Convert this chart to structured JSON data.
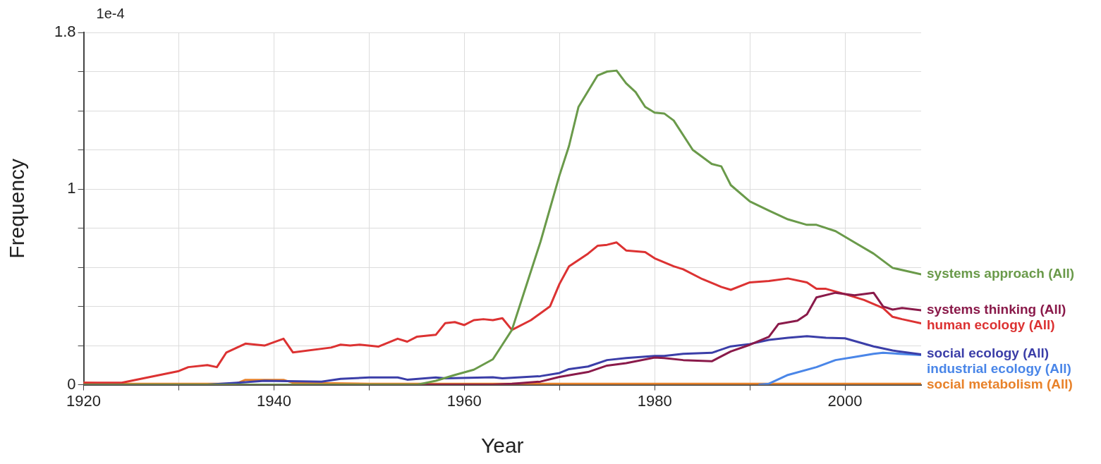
{
  "chart_data": {
    "type": "line",
    "xlabel": "Year",
    "ylabel": "Frequency",
    "annotations": [
      "1e-4"
    ],
    "xlim": [
      1920,
      2008
    ],
    "xticks": [
      1920,
      {
        "value": 1930,
        "label": null
      },
      1940,
      {
        "value": 1950,
        "label": null
      },
      1960,
      {
        "value": 1970,
        "label": null
      },
      1980,
      {
        "value": 1990,
        "label": null
      },
      2000
    ],
    "ylim": [
      0,
      1.8
    ],
    "yticks": [
      0,
      {
        "value": 0.2,
        "label": null
      },
      {
        "value": 0.4,
        "label": null
      },
      {
        "value": 0.6,
        "label": null
      },
      {
        "value": 0.8,
        "label": null
      },
      1,
      {
        "value": 1.2,
        "label": null
      },
      {
        "value": 1.4,
        "label": null
      },
      {
        "value": 1.6,
        "label": null
      },
      1.8
    ],
    "grid": true,
    "legend": false,
    "marker": "none",
    "line_style": "solid",
    "series": [
      {
        "name": "systems approach (All)",
        "color": "#6a9a4a",
        "x": [
          1920,
          1955,
          1957,
          1959,
          1961,
          1963,
          1964,
          1965,
          1966,
          1968,
          1970,
          1971,
          1972,
          1974,
          1975,
          1976,
          1977,
          1978,
          1979,
          1980,
          1981,
          1982,
          1984,
          1986,
          1987,
          1988,
          1990,
          1992,
          1994,
          1996,
          1997,
          1999,
          2001,
          2003,
          2005,
          2008
        ],
        "values": [
          0,
          0,
          0.02,
          0.05,
          0.077,
          0.13,
          0.205,
          0.28,
          0.43,
          0.73,
          1.07,
          1.22,
          1.42,
          1.58,
          1.6,
          1.605,
          1.54,
          1.495,
          1.42,
          1.39,
          1.386,
          1.35,
          1.2,
          1.128,
          1.116,
          1.02,
          0.937,
          0.89,
          0.845,
          0.817,
          0.817,
          0.785,
          0.727,
          0.67,
          0.597,
          0.564
        ]
      },
      {
        "name": "systems thinking (All)",
        "color": "#8a1a4a",
        "x": [
          1920,
          1963,
          1965,
          1968,
          1970,
          1973,
          1975,
          1977,
          1980,
          1981,
          1983,
          1986,
          1988,
          1990,
          1992,
          1993,
          1995,
          1996,
          1997,
          1999,
          2001,
          2003,
          2004,
          2005,
          2006,
          2008
        ],
        "values": [
          0,
          0,
          0.005,
          0.016,
          0.04,
          0.065,
          0.098,
          0.11,
          0.139,
          0.136,
          0.126,
          0.12,
          0.17,
          0.204,
          0.245,
          0.31,
          0.327,
          0.36,
          0.446,
          0.47,
          0.457,
          0.47,
          0.4,
          0.384,
          0.392,
          0.38
        ]
      },
      {
        "name": "human ecology (All)",
        "color": "#dc3232",
        "x": [
          1920,
          1924,
          1930,
          1931,
          1933,
          1934,
          1935,
          1937,
          1939,
          1941,
          1942,
          1946,
          1947,
          1948,
          1949,
          1951,
          1953,
          1954,
          1955,
          1957,
          1958,
          1959,
          1960,
          1961,
          1962,
          1963,
          1964,
          1965,
          1967,
          1969,
          1970,
          1971,
          1973,
          1974,
          1975,
          1976,
          1977,
          1979,
          1980,
          1982,
          1983,
          1985,
          1987,
          1988,
          1990,
          1992,
          1994,
          1996,
          1997,
          1998,
          2000,
          2002,
          2004,
          2005,
          2006,
          2008
        ],
        "values": [
          0.01,
          0.01,
          0.07,
          0.09,
          0.1,
          0.09,
          0.165,
          0.21,
          0.2,
          0.235,
          0.165,
          0.19,
          0.205,
          0.2,
          0.205,
          0.195,
          0.235,
          0.22,
          0.245,
          0.255,
          0.315,
          0.32,
          0.305,
          0.33,
          0.335,
          0.33,
          0.34,
          0.28,
          0.33,
          0.4,
          0.515,
          0.605,
          0.67,
          0.71,
          0.715,
          0.727,
          0.686,
          0.678,
          0.646,
          0.605,
          0.59,
          0.54,
          0.5,
          0.485,
          0.523,
          0.53,
          0.543,
          0.523,
          0.49,
          0.49,
          0.463,
          0.433,
          0.392,
          0.347,
          0.335,
          0.314
        ]
      },
      {
        "name": "social ecology (All)",
        "color": "#3b3ea8",
        "x": [
          1920,
          1933,
          1937,
          1939,
          1945,
          1947,
          1950,
          1953,
          1954,
          1957,
          1958,
          1963,
          1964,
          1968,
          1970,
          1971,
          1973,
          1975,
          1977,
          1980,
          1981,
          1983,
          1986,
          1988,
          1990,
          1992,
          1994,
          1996,
          1998,
          2000,
          2003,
          2005,
          2008
        ],
        "values": [
          0,
          0,
          0.013,
          0.02,
          0.016,
          0.03,
          0.037,
          0.037,
          0.026,
          0.037,
          0.033,
          0.038,
          0.033,
          0.044,
          0.06,
          0.08,
          0.093,
          0.126,
          0.136,
          0.147,
          0.147,
          0.158,
          0.163,
          0.196,
          0.208,
          0.229,
          0.24,
          0.248,
          0.24,
          0.237,
          0.196,
          0.175,
          0.155
        ]
      },
      {
        "name": "industrial ecology (All)",
        "color": "#4a86e8",
        "x": [
          1991,
          1992,
          1994,
          1997,
          1999,
          2001,
          2003,
          2004,
          2008
        ],
        "values": [
          0,
          0.005,
          0.05,
          0.09,
          0.126,
          0.142,
          0.158,
          0.163,
          0.152
        ]
      },
      {
        "name": "social metabolism (All)",
        "color": "#e8822a",
        "x": [
          1920,
          1923,
          1936,
          1937,
          1941,
          1942,
          1950,
          1960,
          2008
        ],
        "values": [
          0.01,
          0.005,
          0.005,
          0.025,
          0.025,
          0.01,
          0.005,
          0.005,
          0.005
        ]
      }
    ]
  }
}
